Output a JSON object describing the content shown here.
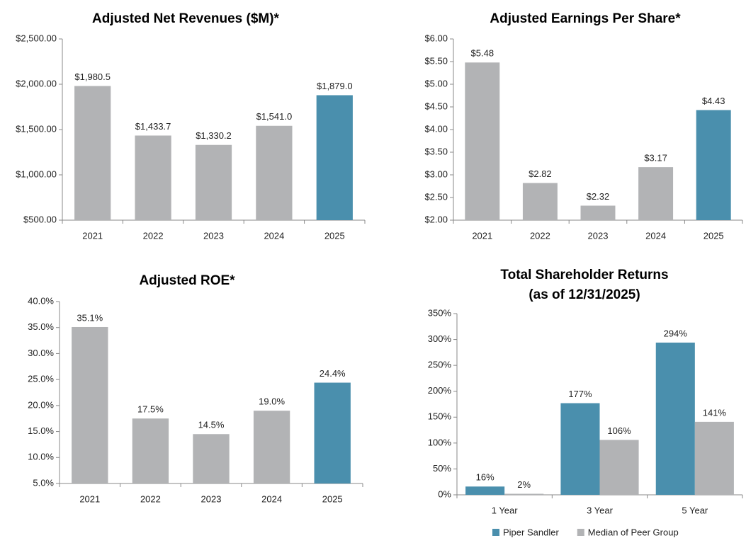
{
  "chart_data": [
    {
      "type": "bar",
      "title": "Adjusted Net Revenues ($M)*",
      "categories": [
        "2021",
        "2022",
        "2023",
        "2024",
        "2025"
      ],
      "values": [
        1980.5,
        1433.7,
        1330.2,
        1541.0,
        1879.0
      ],
      "value_labels": [
        "$1,980.5",
        "$1,433.7",
        "$1,330.2",
        "$1,541.0",
        "$1,879.0"
      ],
      "colors": [
        "#b2b3b5",
        "#b2b3b5",
        "#b2b3b5",
        "#b2b3b5",
        "#4a8fad"
      ],
      "ylim": [
        500,
        2500
      ],
      "yticks": [
        {
          "value": 500,
          "label": "$500.00"
        },
        {
          "value": 1000,
          "label": "$1,000.00"
        },
        {
          "value": 1500,
          "label": "$1,500.00"
        },
        {
          "value": 2000,
          "label": "$2,000.00"
        },
        {
          "value": 2500,
          "label": "$2,500.00"
        }
      ]
    },
    {
      "type": "bar",
      "title": "Adjusted Earnings Per Share*",
      "categories": [
        "2021",
        "2022",
        "2023",
        "2024",
        "2025"
      ],
      "values": [
        5.48,
        2.82,
        2.32,
        3.17,
        4.43
      ],
      "value_labels": [
        "$5.48",
        "$2.82",
        "$2.32",
        "$3.17",
        "$4.43"
      ],
      "colors": [
        "#b2b3b5",
        "#b2b3b5",
        "#b2b3b5",
        "#b2b3b5",
        "#4a8fad"
      ],
      "ylim": [
        2,
        6
      ],
      "yticks": [
        {
          "value": 2,
          "label": "$2.00"
        },
        {
          "value": 2.5,
          "label": "$2.50"
        },
        {
          "value": 3,
          "label": "$3.00"
        },
        {
          "value": 3.5,
          "label": "$3.50"
        },
        {
          "value": 4,
          "label": "$4.00"
        },
        {
          "value": 4.5,
          "label": "$4.50"
        },
        {
          "value": 5,
          "label": "$5.00"
        },
        {
          "value": 5.5,
          "label": "$5.50"
        },
        {
          "value": 6,
          "label": "$6.00"
        }
      ]
    },
    {
      "type": "bar",
      "title": "Adjusted ROE*",
      "categories": [
        "2021",
        "2022",
        "2023",
        "2024",
        "2025"
      ],
      "values": [
        35.1,
        17.5,
        14.5,
        19.0,
        24.4
      ],
      "value_labels": [
        "35.1%",
        "17.5%",
        "14.5%",
        "19.0%",
        "24.4%"
      ],
      "colors": [
        "#b2b3b5",
        "#b2b3b5",
        "#b2b3b5",
        "#b2b3b5",
        "#4a8fad"
      ],
      "ylim": [
        5,
        40
      ],
      "yticks": [
        {
          "value": 5,
          "label": "5.0%"
        },
        {
          "value": 10,
          "label": "10.0%"
        },
        {
          "value": 15,
          "label": "15.0%"
        },
        {
          "value": 20,
          "label": "20.0%"
        },
        {
          "value": 25,
          "label": "25.0%"
        },
        {
          "value": 30,
          "label": "30.0%"
        },
        {
          "value": 35,
          "label": "35.0%"
        },
        {
          "value": 40,
          "label": "40.0%"
        }
      ]
    },
    {
      "type": "grouped_bar",
      "title": "Total Shareholder Returns",
      "subtitle": "(as of 12/31/2025)",
      "categories": [
        "1 Year",
        "3 Year",
        "5 Year"
      ],
      "series": [
        {
          "name": "Piper Sandler",
          "color": "#4a8fad",
          "values": [
            16,
            177,
            294
          ],
          "value_labels": [
            "16%",
            "177%",
            "294%"
          ]
        },
        {
          "name": "Median of Peer Group",
          "color": "#b2b3b5",
          "values": [
            2,
            106,
            141
          ],
          "value_labels": [
            "2%",
            "106%",
            "141%"
          ]
        }
      ],
      "ylim": [
        0,
        350
      ],
      "yticks": [
        {
          "value": 0,
          "label": "0%"
        },
        {
          "value": 50,
          "label": "50%"
        },
        {
          "value": 100,
          "label": "100%"
        },
        {
          "value": 150,
          "label": "150%"
        },
        {
          "value": 200,
          "label": "200%"
        },
        {
          "value": 250,
          "label": "250%"
        },
        {
          "value": 300,
          "label": "300%"
        },
        {
          "value": 350,
          "label": "350%"
        }
      ],
      "legend": "bottom"
    }
  ]
}
